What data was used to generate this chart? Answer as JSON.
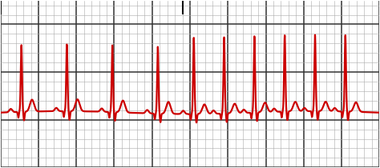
{
  "fig_width": 4.74,
  "fig_height": 2.1,
  "dpi": 100,
  "bg_color": "#ffffff",
  "grid_minor_color": "#aaaaaa",
  "grid_major_color": "#333333",
  "grid_minor_lw": 0.4,
  "grid_major_lw": 1.1,
  "ecg_color": "#cc0000",
  "ecg_linewidth": 1.6,
  "marker_color": "#111111",
  "xmin": 0,
  "xmax": 10,
  "ymin": -1.5,
  "ymax": 2.0,
  "minor_x_spacing": 0.2,
  "minor_y_spacing": 0.2,
  "major_x_spacing": 1.0,
  "major_y_spacing": 1.0,
  "sinus_beats": [
    0.55,
    1.75,
    2.95,
    4.15
  ],
  "pat_beats": [
    5.1,
    5.9,
    6.7,
    7.5,
    8.3,
    9.1
  ],
  "sinus_amplitude": 1.4,
  "pat_amplitude": 1.6,
  "baseline_y": -0.35,
  "marker_x": 4.82
}
